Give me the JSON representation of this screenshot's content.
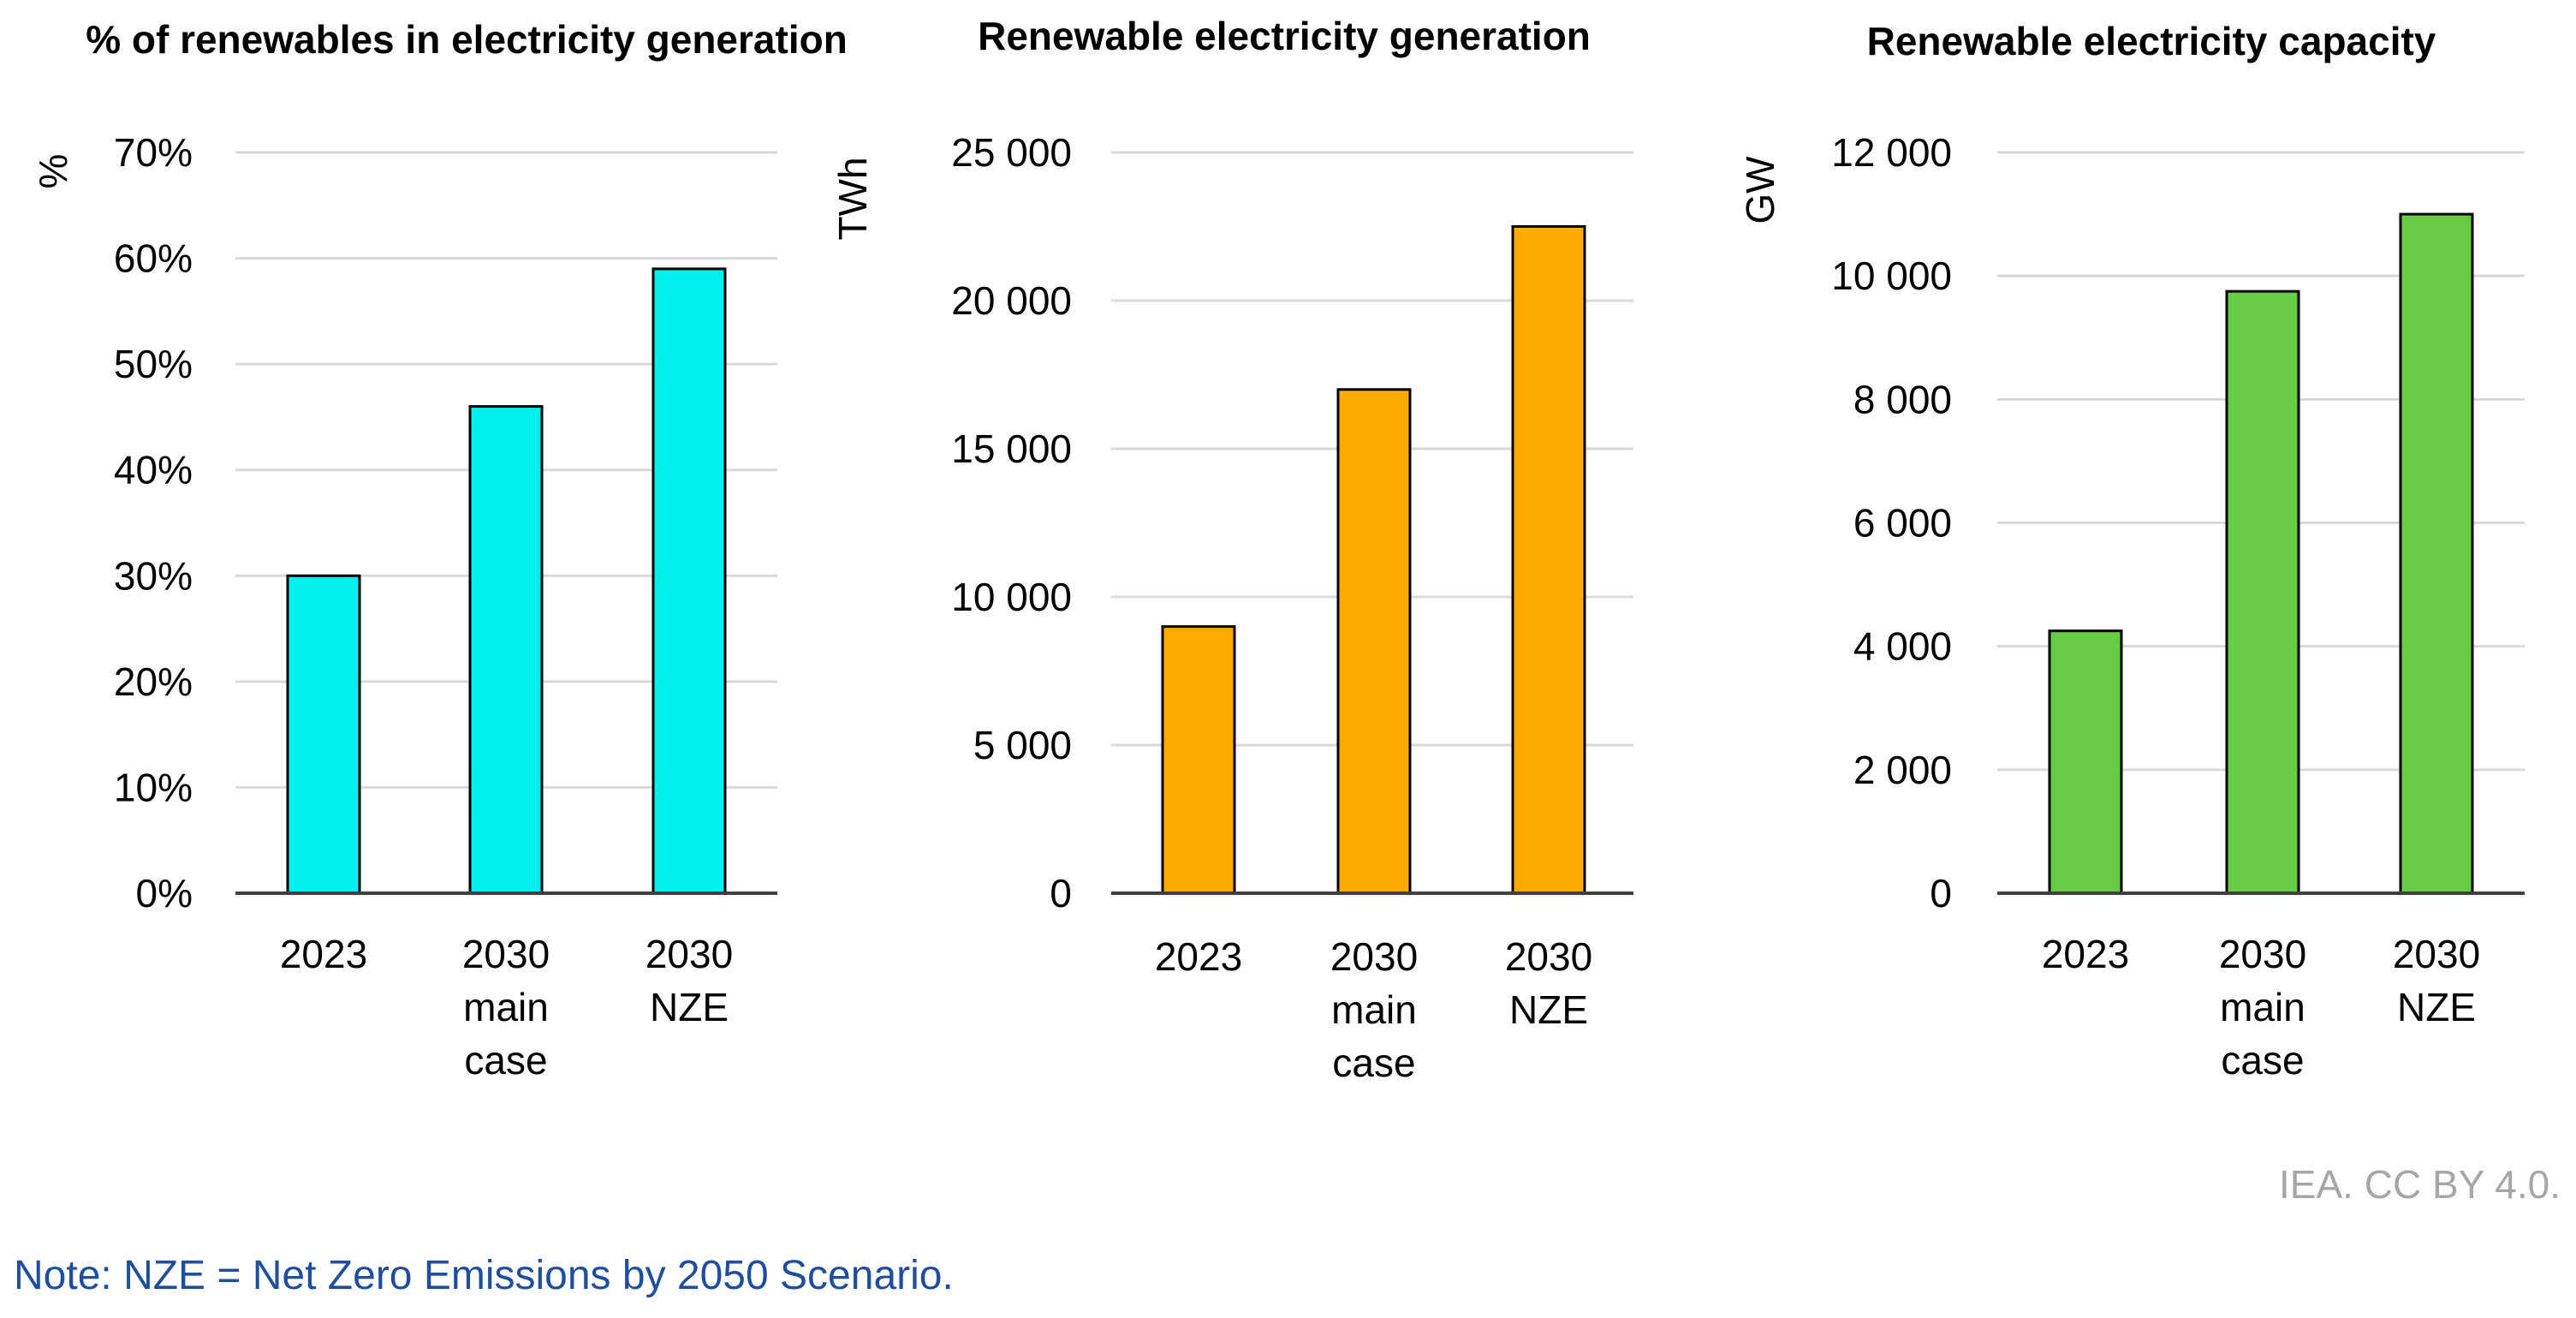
{
  "chart_data": [
    {
      "type": "bar",
      "title": "% of renewables in electricity generation",
      "ylabel": "%",
      "xlabel": "",
      "categories": [
        [
          "2023"
        ],
        [
          "2030",
          "main",
          "case"
        ],
        [
          "2030",
          "NZE"
        ]
      ],
      "values": [
        30,
        46,
        59
      ],
      "ylim": [
        0,
        70
      ],
      "yticks": [
        0,
        10,
        20,
        30,
        40,
        50,
        60,
        70
      ],
      "ytick_labels": [
        "0%",
        "10%",
        "20%",
        "30%",
        "40%",
        "50%",
        "60%",
        "70%"
      ],
      "color": "#00f0f0",
      "grid": true
    },
    {
      "type": "bar",
      "title": "Renewable electricity generation",
      "ylabel": "TWh",
      "xlabel": "",
      "categories": [
        [
          "2023"
        ],
        [
          "2030",
          "main",
          "case"
        ],
        [
          "2030",
          "NZE"
        ]
      ],
      "values": [
        9000,
        17000,
        22500
      ],
      "ylim": [
        0,
        25000
      ],
      "yticks": [
        0,
        5000,
        10000,
        15000,
        20000,
        25000
      ],
      "ytick_labels": [
        "0",
        "5 000",
        "10 000",
        "15 000",
        "20 000",
        "25 000"
      ],
      "color": "#ffaa00",
      "grid": true
    },
    {
      "type": "bar",
      "title": "Renewable electricity capacity",
      "ylabel": "GW",
      "xlabel": "",
      "categories": [
        [
          "2023"
        ],
        [
          "2030",
          "main",
          "case"
        ],
        [
          "2030",
          "NZE"
        ]
      ],
      "values": [
        4250,
        9750,
        11000
      ],
      "ylim": [
        0,
        12000
      ],
      "yticks": [
        0,
        2000,
        4000,
        6000,
        8000,
        10000,
        12000
      ],
      "ytick_labels": [
        "0",
        "2 000",
        "4 000",
        "6 000",
        "8 000",
        "10 000",
        "12 000"
      ],
      "color": "#66cc44",
      "grid": true
    }
  ],
  "source": "IEA. CC BY 4.0.",
  "note": "Note: NZE = Net Zero Emissions by 2050 Scenario."
}
